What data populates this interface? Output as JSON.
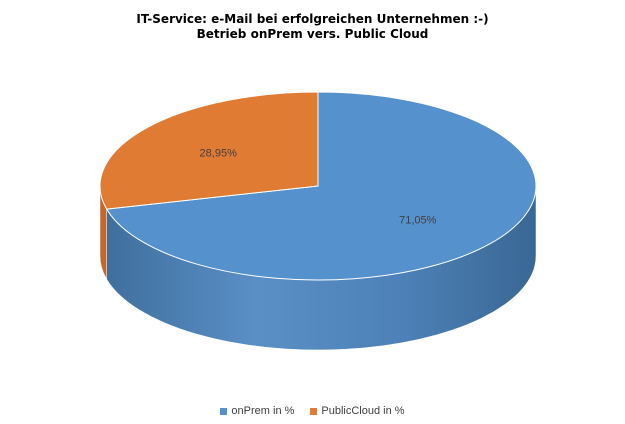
{
  "colors": {
    "onprem": "#5591cc",
    "onprem_side": "#4a7fb4",
    "cloud": "#e07b34",
    "cloud_side": "#c4682a"
  },
  "chart_data": {
    "type": "pie",
    "title": "IT-Service: e-Mail bei erfolgreichen Unternehmen :-)",
    "subtitle": "Betrieb onPrem vers. Public Cloud",
    "slices": [
      {
        "name": "onPrem in %",
        "value": 71.05,
        "label": "71,05%"
      },
      {
        "name": "PublicCloud in %",
        "value": 28.95,
        "label": "28,95%"
      }
    ],
    "legend_position": "bottom",
    "three_d": true
  }
}
